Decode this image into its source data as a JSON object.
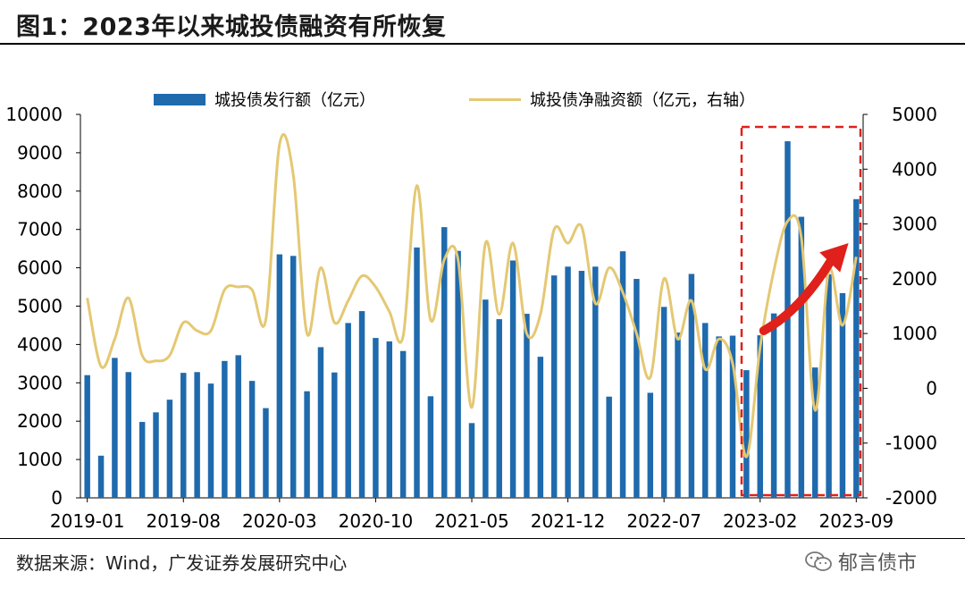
{
  "title": "图1：2023年以来城投债融资有所恢复",
  "source": "数据来源：Wind，广发证券发展研究中心",
  "watermark": "郁言债市",
  "colors": {
    "bar": "#1f6aad",
    "line": "#e4c873",
    "arrow": "#e0201b",
    "box": "#e0201b"
  },
  "chart_data": {
    "type": "bar+line",
    "legend": [
      "城投债发行额（亿元）",
      "城投债净融资额（亿元，右轴）"
    ],
    "y_left": {
      "min": 0,
      "max": 10000,
      "ticks": [
        0,
        1000,
        2000,
        3000,
        4000,
        5000,
        6000,
        7000,
        8000,
        9000,
        10000
      ]
    },
    "y_right": {
      "min": -2000,
      "max": 5000,
      "ticks": [
        -2000,
        -1000,
        0,
        1000,
        2000,
        3000,
        4000,
        5000
      ]
    },
    "x_tick_labels": [
      "2019-01",
      "2019-08",
      "2020-03",
      "2020-10",
      "2021-05",
      "2021-12",
      "2022-07",
      "2023-02",
      "2023-09"
    ],
    "x_tick_indices": [
      0,
      7,
      14,
      21,
      28,
      35,
      42,
      49,
      56
    ],
    "months": [
      "2019-01",
      "2019-02",
      "2019-03",
      "2019-04",
      "2019-05",
      "2019-06",
      "2019-07",
      "2019-08",
      "2019-09",
      "2019-10",
      "2019-11",
      "2019-12",
      "2020-01",
      "2020-02",
      "2020-03",
      "2020-04",
      "2020-05",
      "2020-06",
      "2020-07",
      "2020-08",
      "2020-09",
      "2020-10",
      "2020-11",
      "2020-12",
      "2021-01",
      "2021-02",
      "2021-03",
      "2021-04",
      "2021-05",
      "2021-06",
      "2021-07",
      "2021-08",
      "2021-09",
      "2021-10",
      "2021-11",
      "2021-12",
      "2022-01",
      "2022-02",
      "2022-03",
      "2022-04",
      "2022-05",
      "2022-06",
      "2022-07",
      "2022-08",
      "2022-09",
      "2022-10",
      "2022-11",
      "2022-12",
      "2023-01",
      "2023-02",
      "2023-03",
      "2023-04",
      "2023-05",
      "2023-06",
      "2023-07",
      "2023-08",
      "2023-09"
    ],
    "series": [
      {
        "name": "城投债发行额（亿元）",
        "axis": "left",
        "type": "bar",
        "values": [
          3200,
          1100,
          3650,
          3280,
          1980,
          2230,
          2560,
          3260,
          3280,
          2980,
          3570,
          3720,
          3050,
          2340,
          6350,
          6310,
          2780,
          3930,
          3270,
          4560,
          4870,
          4170,
          4080,
          3830,
          6530,
          2650,
          7060,
          6440,
          1950,
          5170,
          4660,
          6190,
          4800,
          3680,
          5800,
          6030,
          5920,
          6030,
          2640,
          6430,
          5710,
          2740,
          4980,
          4310,
          5840,
          4560,
          4210,
          4230,
          3330,
          4240,
          4810,
          9300,
          7330,
          3400,
          5830,
          5340,
          7790
        ]
      },
      {
        "name": "城投债净融资额（亿元，右轴）",
        "axis": "right",
        "type": "line",
        "values": [
          1650,
          400,
          900,
          1650,
          600,
          500,
          600,
          1200,
          1050,
          1050,
          1800,
          1850,
          1800,
          1250,
          4450,
          3900,
          1000,
          2200,
          1200,
          1600,
          2050,
          1850,
          1400,
          950,
          3700,
          1250,
          2350,
          2350,
          -350,
          2650,
          1350,
          2650,
          1000,
          1350,
          2900,
          2650,
          2950,
          1550,
          2200,
          1750,
          1000,
          200,
          2000,
          900,
          1600,
          350,
          900,
          450,
          -1250,
          750,
          2150,
          3050,
          2750,
          -400,
          2150,
          1150,
          2400
        ]
      }
    ]
  }
}
